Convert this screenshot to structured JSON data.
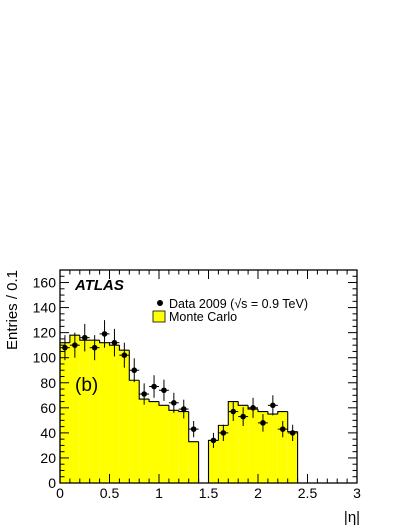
{
  "chart_data": {
    "type": "histogram",
    "experiment_label": "ATLAS",
    "panel_label": "(b)",
    "xlabel": "|η|",
    "ylabel": "Entries / 0.1",
    "xlim": [
      0,
      3
    ],
    "ylim": [
      0,
      170
    ],
    "x_ticks": [
      0,
      0.5,
      1,
      1.5,
      2,
      2.5,
      3
    ],
    "x_tick_labels": [
      "0",
      "0.5",
      "1",
      "1.5",
      "2",
      "2.5",
      "3"
    ],
    "y_ticks": [
      0,
      20,
      40,
      60,
      80,
      100,
      120,
      140,
      160
    ],
    "y_tick_labels": [
      "0",
      "20",
      "40",
      "60",
      "80",
      "100",
      "120",
      "140",
      "160"
    ],
    "grid": false,
    "legend_position": "top-right",
    "colors": {
      "mc_fill": "#ffff00",
      "data": "#000000"
    },
    "series": [
      {
        "name": "Monte Carlo",
        "kind": "filled-histogram",
        "bin_edges": [
          0,
          0.1,
          0.2,
          0.3,
          0.4,
          0.5,
          0.6,
          0.7,
          0.8,
          0.9,
          1.0,
          1.1,
          1.2,
          1.3,
          1.4,
          1.5,
          1.6,
          1.7,
          1.8,
          1.9,
          2.0,
          2.1,
          2.2,
          2.3,
          2.4
        ],
        "values": [
          112,
          118,
          114,
          114,
          112,
          110,
          106,
          82,
          67,
          65,
          62,
          58,
          57,
          33,
          0,
          34,
          46,
          65,
          62,
          59,
          57,
          55,
          57,
          41
        ]
      },
      {
        "name": "Data 2009 (√s = 0.9 TeV)",
        "kind": "points-with-errors",
        "x": [
          0.05,
          0.15,
          0.25,
          0.35,
          0.45,
          0.55,
          0.65,
          0.75,
          0.85,
          0.95,
          1.05,
          1.15,
          1.25,
          1.35,
          1.55,
          1.65,
          1.75,
          1.85,
          1.95,
          2.05,
          2.15,
          2.25,
          2.35
        ],
        "values": [
          108,
          110,
          116,
          108,
          119,
          112,
          102,
          90,
          71,
          77,
          74,
          64,
          59,
          43,
          34,
          40,
          57,
          53,
          60,
          48,
          62,
          43,
          40
        ],
        "errors": [
          10,
          10,
          11,
          10,
          11,
          11,
          10,
          9.5,
          8.5,
          9,
          8.5,
          8,
          7.5,
          6.5,
          6,
          6.5,
          7.5,
          7.5,
          8,
          7,
          8,
          6.5,
          6.5
        ]
      }
    ]
  }
}
